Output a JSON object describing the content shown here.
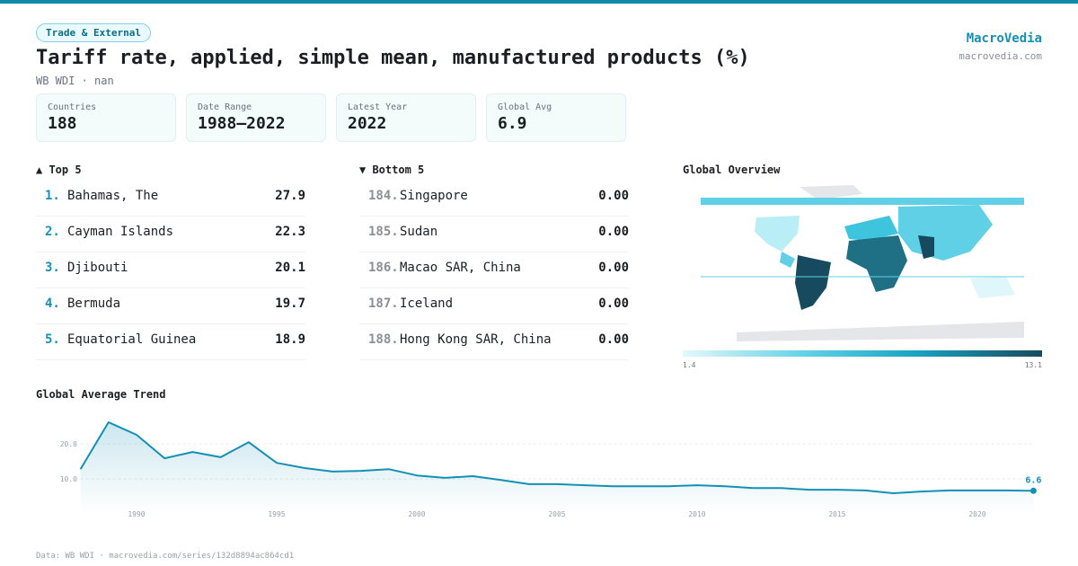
{
  "header": {
    "tag": "Trade & External",
    "title": "Tariff rate, applied, simple mean, manufactured products (%)",
    "subtitle": "WB WDI · nan",
    "brand": "MacroVedia",
    "site": "macrovedia.com"
  },
  "stats": [
    {
      "label": "Countries",
      "value": 188
    },
    {
      "label": "Date Range",
      "value": "1988–2022"
    },
    {
      "label": "Latest Year",
      "value": 2022
    },
    {
      "label": "Global Avg",
      "value": 6.9
    }
  ],
  "top": {
    "title": "▲ Top 5",
    "rows": [
      {
        "rank": "1.",
        "name": "Bahamas, The",
        "value": 27.9
      },
      {
        "rank": "2.",
        "name": "Cayman Islands",
        "value": 22.3
      },
      {
        "rank": "3.",
        "name": "Djibouti",
        "value": 20.1
      },
      {
        "rank": "4.",
        "name": "Bermuda",
        "value": 19.7
      },
      {
        "rank": "5.",
        "name": "Equatorial Guinea",
        "value": 18.9
      }
    ]
  },
  "bottom": {
    "title": "▼ Bottom 5",
    "rows": [
      {
        "rank": "184.",
        "name": "Singapore",
        "value": "0.00"
      },
      {
        "rank": "185.",
        "name": "Sudan",
        "value": "0.00"
      },
      {
        "rank": "186.",
        "name": "Macao SAR, China",
        "value": "0.00"
      },
      {
        "rank": "187.",
        "name": "Iceland",
        "value": "0.00"
      },
      {
        "rank": "188.",
        "name": "Hong Kong SAR, China",
        "value": "0.00"
      }
    ]
  },
  "map": {
    "title": "Global Overview",
    "legend_min": 1.4,
    "legend_max": 13.1
  },
  "chart_data": {
    "type": "line",
    "title": "Global Average Trend",
    "x": [
      1988,
      1989,
      1990,
      1991,
      1992,
      1993,
      1994,
      1995,
      1996,
      1997,
      1998,
      1999,
      2000,
      2001,
      2002,
      2003,
      2004,
      2005,
      2006,
      2007,
      2008,
      2009,
      2010,
      2011,
      2012,
      2013,
      2014,
      2015,
      2016,
      2017,
      2018,
      2019,
      2020,
      2021,
      2022
    ],
    "series": [
      {
        "name": "Global Average",
        "color": "#1590b5",
        "values": [
          12.8,
          26.2,
          22.6,
          15.9,
          17.7,
          16.2,
          20.5,
          14.6,
          13.1,
          12.1,
          12.3,
          12.8,
          11.0,
          10.3,
          10.8,
          9.7,
          8.5,
          8.5,
          8.2,
          7.9,
          7.9,
          7.9,
          8.2,
          7.9,
          7.4,
          7.4,
          6.9,
          6.9,
          6.7,
          5.9,
          6.4,
          6.7,
          6.7,
          6.7,
          6.6
        ]
      }
    ],
    "xlim": [
      1988,
      2022
    ],
    "xticks": [
      1990,
      1995,
      2000,
      2005,
      2010,
      2015,
      2020
    ],
    "ylim": [
      0,
      28
    ],
    "yticks": [
      {
        "value": 10,
        "label": "10.0"
      },
      {
        "value": 20,
        "label": "20.0"
      }
    ],
    "grid": true
  },
  "footer": "Data: WB WDI · macrovedia.com/series/132d8894ac864cd1"
}
